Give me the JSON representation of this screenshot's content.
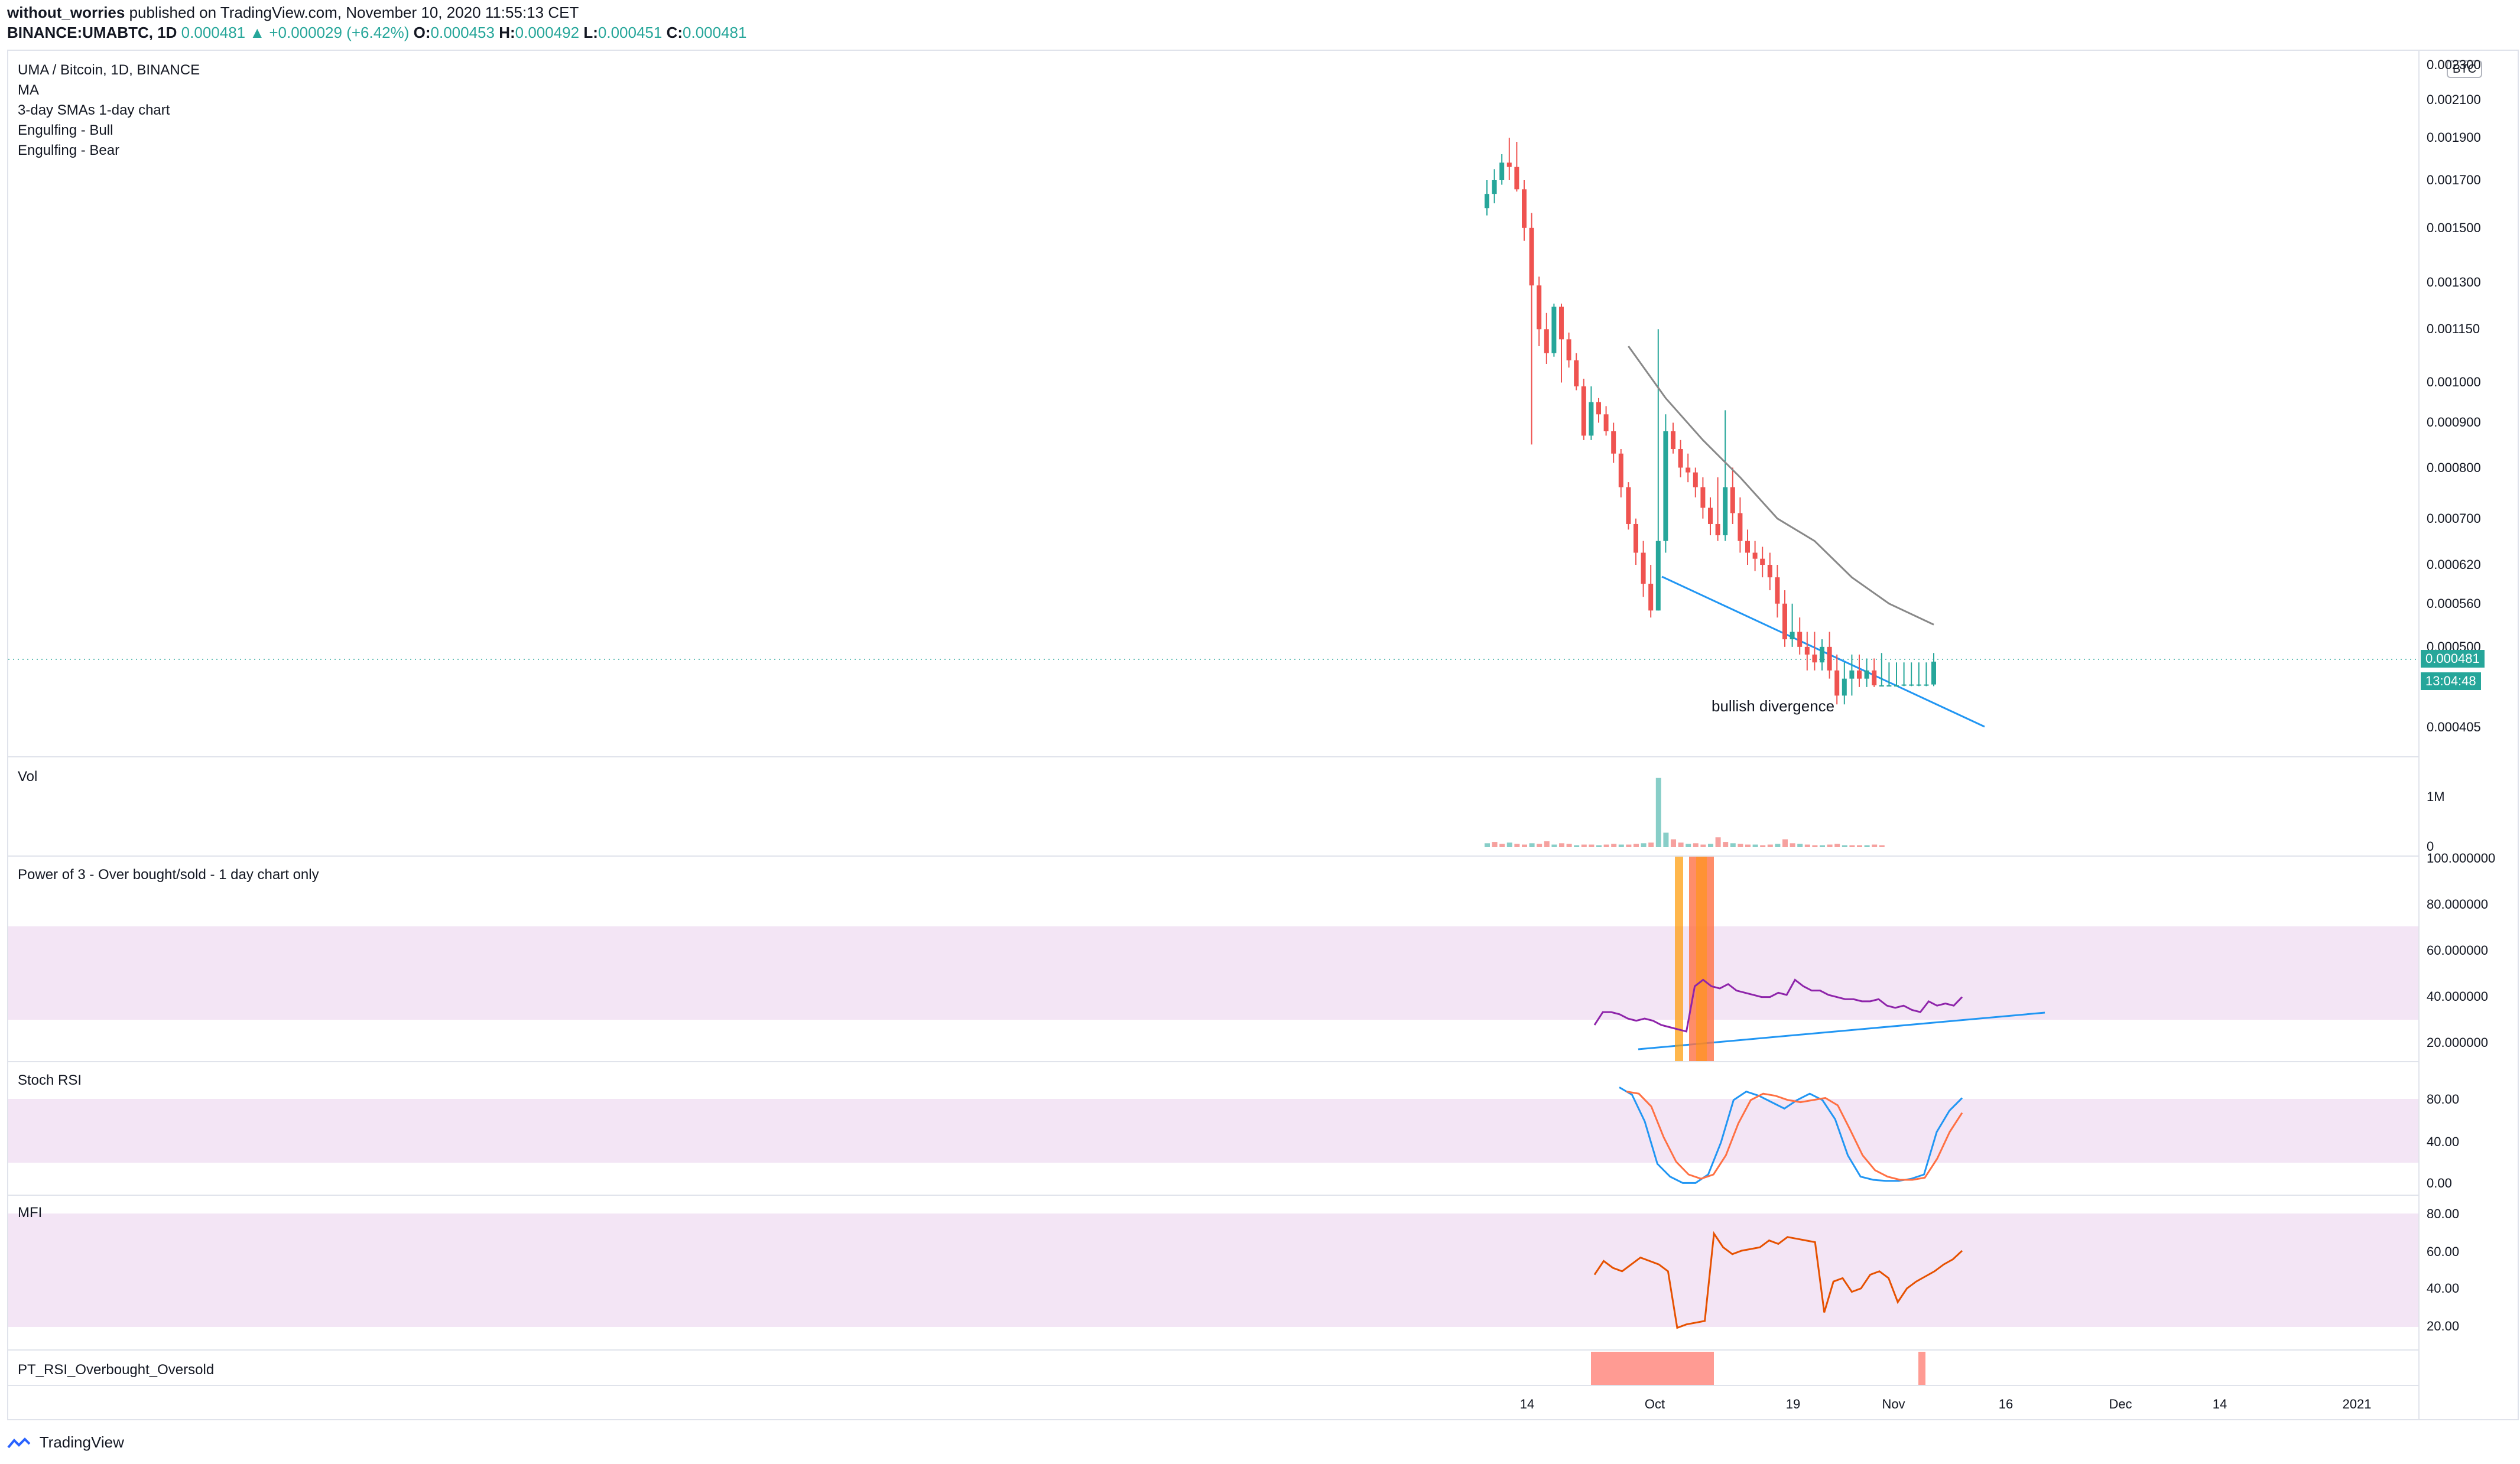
{
  "header": {
    "author": "without_worries",
    "published_text": "published on TradingView.com, November 10, 2020 11:55:13 CET",
    "symbol": "BINANCE:UMABTC, 1D",
    "price": "0.000481",
    "change_arrow": "▲",
    "change": "+0.000029 (+6.42%)",
    "o_label": "O:",
    "o_value": "0.000453",
    "h_label": "H:",
    "h_value": "0.000492",
    "l_label": "L:",
    "l_value": "0.000451",
    "c_label": "C:",
    "c_value": "0.000481"
  },
  "main_pane": {
    "legend": [
      "UMA / Bitcoin, 1D, BINANCE",
      "MA",
      "3-day SMAs 1-day chart",
      "Engulfing - Bull",
      "Engulfing - Bear"
    ],
    "annotation": "bullish divergence",
    "currency_badge": "BTC",
    "price_ticks": [
      "0.002300",
      "0.002100",
      "0.001900",
      "0.001700",
      "0.001500",
      "0.001300",
      "0.001150",
      "0.001000",
      "0.000900",
      "0.000800",
      "0.000700",
      "0.000620",
      "0.000560",
      "0.000500",
      "0.000405"
    ],
    "last_price_badge": "0.000481",
    "countdown_badge": "13:04:48"
  },
  "panes": {
    "vol": {
      "label": "Vol",
      "ticks": [
        "1M",
        "0"
      ]
    },
    "power3": {
      "label": "Power of 3 - Over bought/sold - 1 day chart only",
      "ticks": [
        "100.000000",
        "80.000000",
        "60.000000",
        "40.000000",
        "20.000000"
      ]
    },
    "stoch": {
      "label": "Stoch RSI",
      "ticks": [
        "80.00",
        "40.00",
        "0.00"
      ]
    },
    "mfi": {
      "label": "MFI",
      "ticks": [
        "80.00",
        "60.00",
        "40.00",
        "20.00"
      ]
    },
    "pt": {
      "label": "PT_RSI_Overbought_Oversold"
    }
  },
  "x_axis": [
    "14",
    "Oct",
    "19",
    "Nov",
    "16",
    "Dec",
    "14",
    "2021"
  ],
  "footer": {
    "brand": "TradingView"
  },
  "colors": {
    "up": "#26a69a",
    "down": "#ef5350",
    "ma": "#888888",
    "trend": "#2196f3",
    "power3": "#8e24aa",
    "mfi": "#e65100",
    "band": "#f3e5f5"
  },
  "chart_data": [
    {
      "type": "candlestick",
      "title": "UMA / Bitcoin, 1D, BINANCE",
      "x": [
        "2020-09-11",
        "2020-09-12",
        "2020-09-13",
        "2020-09-14",
        "2020-09-15",
        "2020-09-16",
        "2020-09-17",
        "2020-09-18",
        "2020-09-19",
        "2020-09-20",
        "2020-09-21",
        "2020-09-22",
        "2020-09-23",
        "2020-09-24",
        "2020-09-25",
        "2020-09-26",
        "2020-09-27",
        "2020-09-28",
        "2020-09-29",
        "2020-09-30",
        "2020-10-01",
        "2020-10-02",
        "2020-10-03",
        "2020-10-04",
        "2020-10-05",
        "2020-10-06",
        "2020-10-07",
        "2020-10-08",
        "2020-10-09",
        "2020-10-10",
        "2020-10-11",
        "2020-10-12",
        "2020-10-13",
        "2020-10-14",
        "2020-10-15",
        "2020-10-16",
        "2020-10-17",
        "2020-10-18",
        "2020-10-19",
        "2020-10-20",
        "2020-10-21",
        "2020-10-22",
        "2020-10-23",
        "2020-10-24",
        "2020-10-25",
        "2020-10-26",
        "2020-10-27",
        "2020-10-28",
        "2020-10-29",
        "2020-10-30",
        "2020-10-31",
        "2020-11-01",
        "2020-11-02",
        "2020-11-03",
        "2020-11-04",
        "2020-11-05",
        "2020-11-06",
        "2020-11-07",
        "2020-11-08",
        "2020-11-09",
        "2020-11-10"
      ],
      "open": [
        0.00158,
        0.00164,
        0.0017,
        0.00178,
        0.00176,
        0.00166,
        0.0015,
        0.00129,
        0.00115,
        0.00108,
        0.00122,
        0.00112,
        0.00106,
        0.00099,
        0.00087,
        0.00095,
        0.00092,
        0.00088,
        0.00083,
        0.00076,
        0.00069,
        0.00064,
        0.00059,
        0.00055,
        0.00066,
        0.00088,
        0.00084,
        0.0008,
        0.00079,
        0.00076,
        0.00072,
        0.00069,
        0.00067,
        0.00076,
        0.00071,
        0.00066,
        0.00064,
        0.00063,
        0.00062,
        0.0006,
        0.00056,
        0.00051,
        0.00052,
        0.0005,
        0.00049,
        0.00048,
        0.0005,
        0.00047,
        0.00044,
        0.00046,
        0.00047,
        0.00046,
        0.00047,
        0.000452,
        0.000452,
        0.000452,
        0.000452,
        0.000453,
        0.000453,
        0.000453,
        0.000453
      ],
      "high": [
        0.0017,
        0.00175,
        0.00182,
        0.0019,
        0.00188,
        0.0017,
        0.00156,
        0.00132,
        0.0012,
        0.00123,
        0.00123,
        0.00114,
        0.00108,
        0.00101,
        0.00099,
        0.00096,
        0.00094,
        0.0009,
        0.00084,
        0.00077,
        0.0007,
        0.00066,
        0.00062,
        0.00115,
        0.00092,
        0.0009,
        0.00086,
        0.00083,
        0.0008,
        0.00078,
        0.00074,
        0.00078,
        0.00093,
        0.0008,
        0.00074,
        0.00068,
        0.00066,
        0.00065,
        0.00064,
        0.00062,
        0.00058,
        0.00056,
        0.00054,
        0.00052,
        0.00052,
        0.00051,
        0.00052,
        0.00049,
        0.00048,
        0.00049,
        0.00049,
        0.000485,
        0.000485,
        0.000492,
        0.00048,
        0.00048,
        0.00048,
        0.00048,
        0.00048,
        0.00048,
        0.000492
      ],
      "low": [
        0.00155,
        0.0016,
        0.00168,
        0.0017,
        0.00165,
        0.00145,
        0.00085,
        0.0011,
        0.00105,
        0.00107,
        0.001,
        0.00104,
        0.00098,
        0.00086,
        0.00086,
        0.0009,
        0.00087,
        0.00081,
        0.00074,
        0.00068,
        0.00062,
        0.00057,
        0.00054,
        0.00055,
        0.00064,
        0.00083,
        0.00078,
        0.00077,
        0.00074,
        0.0007,
        0.00067,
        0.00066,
        0.00066,
        0.00069,
        0.00064,
        0.00062,
        0.00061,
        0.0006,
        0.00058,
        0.00054,
        0.0005,
        0.0005,
        0.00049,
        0.00047,
        0.00047,
        0.00047,
        0.00046,
        0.00043,
        0.00043,
        0.00044,
        0.00045,
        0.00045,
        0.00045,
        0.000451,
        0.000451,
        0.000451,
        0.000451,
        0.000451,
        0.000451,
        0.000451,
        0.000451
      ],
      "close": [
        0.00164,
        0.0017,
        0.00178,
        0.00176,
        0.00166,
        0.0015,
        0.00129,
        0.00115,
        0.00108,
        0.00122,
        0.00112,
        0.00106,
        0.00099,
        0.00087,
        0.00095,
        0.00092,
        0.00088,
        0.00083,
        0.00076,
        0.00069,
        0.00064,
        0.00059,
        0.00055,
        0.00066,
        0.00088,
        0.00084,
        0.0008,
        0.00079,
        0.00076,
        0.00072,
        0.00069,
        0.00067,
        0.00076,
        0.00071,
        0.00066,
        0.00064,
        0.00063,
        0.00062,
        0.0006,
        0.00056,
        0.00051,
        0.00052,
        0.0005,
        0.00049,
        0.00048,
        0.0005,
        0.00047,
        0.00044,
        0.00046,
        0.00047,
        0.00046,
        0.00047,
        0.000452,
        0.000452,
        0.000452,
        0.000452,
        0.000453,
        0.000453,
        0.000453,
        0.000453,
        0.000481
      ],
      "ma": {
        "name": "MA",
        "x": [
          "2020-09-30",
          "2020-10-05",
          "2020-10-10",
          "2020-10-15",
          "2020-10-20",
          "2020-10-25",
          "2020-10-30",
          "2020-11-04",
          "2020-11-10"
        ],
        "values": [
          0.0011,
          0.00096,
          0.00086,
          0.00078,
          0.0007,
          0.00066,
          0.0006,
          0.00056,
          0.00053
        ]
      },
      "ylim": [
        0.00038,
        0.00235
      ],
      "y_scale": "log"
    },
    {
      "type": "bar",
      "title": "Vol",
      "values": [
        0.06,
        0.08,
        0.05,
        0.07,
        0.05,
        0.04,
        0.06,
        0.05,
        0.09,
        0.04,
        0.06,
        0.05,
        0.03,
        0.04,
        0.04,
        0.03,
        0.04,
        0.05,
        0.04,
        0.04,
        0.05,
        0.06,
        0.07,
        1.05,
        0.22,
        0.12,
        0.07,
        0.05,
        0.06,
        0.04,
        0.05,
        0.15,
        0.08,
        0.06,
        0.05,
        0.04,
        0.04,
        0.03,
        0.04,
        0.05,
        0.12,
        0.06,
        0.05,
        0.04,
        0.03,
        0.03,
        0.04,
        0.05,
        0.03,
        0.03,
        0.03,
        0.03,
        0.04,
        0.03
      ],
      "ylim": [
        0,
        1.2
      ]
    },
    {
      "type": "line",
      "title": "Power of 3 - Over bought/sold - 1 day chart only",
      "series": [
        {
          "values": [
            24,
            30,
            30,
            29,
            27,
            26,
            27,
            26,
            24,
            23,
            22,
            21,
            42,
            45,
            42,
            41,
            43,
            40,
            39,
            38,
            37,
            37,
            39,
            38,
            45,
            42,
            40,
            40,
            38,
            37,
            36,
            36,
            35,
            35,
            36,
            33,
            32,
            33,
            31,
            30,
            35,
            33,
            34,
            33,
            37
          ]
        }
      ],
      "ylim": [
        10,
        100
      ]
    },
    {
      "type": "line",
      "title": "Stoch RSI",
      "series": [
        {
          "values": [
            92,
            85,
            60,
            20,
            8,
            2,
            2,
            10,
            40,
            80,
            88,
            84,
            78,
            72,
            80,
            86,
            80,
            62,
            28,
            8,
            5,
            4,
            4,
            6,
            10,
            50,
            70,
            82
          ]
        },
        {
          "values": [
            88,
            86,
            74,
            45,
            22,
            10,
            6,
            10,
            28,
            58,
            80,
            86,
            84,
            80,
            78,
            80,
            82,
            75,
            52,
            28,
            14,
            8,
            5,
            5,
            7,
            25,
            50,
            68
          ]
        }
      ],
      "ylim": [
        0,
        100
      ]
    },
    {
      "type": "line",
      "title": "MFI",
      "series": [
        {
          "values": [
            46,
            54,
            50,
            48,
            52,
            56,
            54,
            52,
            48,
            15,
            17,
            18,
            19,
            70,
            62,
            58,
            60,
            61,
            62,
            66,
            64,
            68,
            67,
            66,
            65,
            24,
            42,
            44,
            36,
            38,
            46,
            48,
            44,
            30,
            38,
            42,
            45,
            48,
            52,
            55,
            60
          ]
        }
      ],
      "ylim": [
        10,
        90
      ]
    }
  ]
}
